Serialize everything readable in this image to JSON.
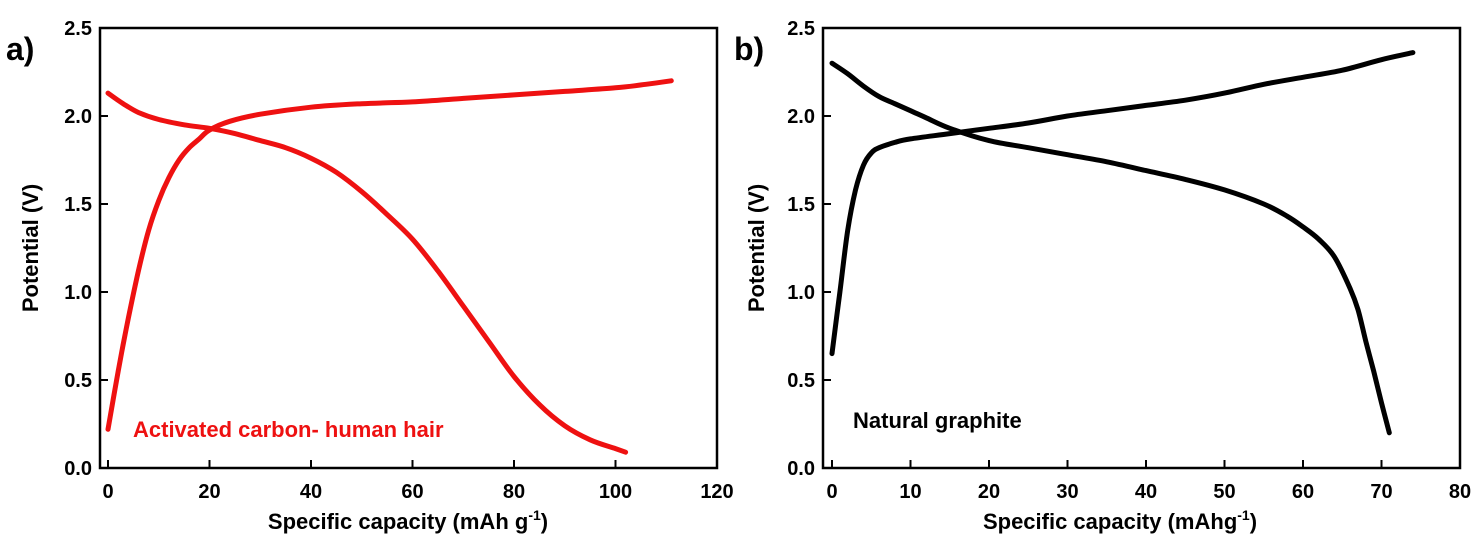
{
  "chart_data": [
    {
      "type": "line",
      "panel_label": "a)",
      "xlabel": "Specific capacity (mAh g",
      "xlabel_sup": "-1",
      "xlabel_end": ")",
      "ylabel": "Potential (V)",
      "xlim": [
        0,
        120
      ],
      "ylim": [
        0,
        2.5
      ],
      "xticks": [
        0,
        20,
        40,
        60,
        80,
        100,
        120
      ],
      "yticks": [
        0.0,
        0.5,
        1.0,
        1.5,
        2.0,
        2.5
      ],
      "xtick_labels": [
        "0",
        "20",
        "40",
        "60",
        "80",
        "100",
        "120"
      ],
      "ytick_labels": [
        "0.0",
        "0.5",
        "1.0",
        "1.5",
        "2.0",
        "2.5"
      ],
      "annotation": "Activated carbon- human hair",
      "color": "#ee1111",
      "series": [
        {
          "values": [
            [
              0,
              0.22
            ],
            [
              2,
              0.55
            ],
            [
              4,
              0.85
            ],
            [
              6,
              1.12
            ],
            [
              8,
              1.35
            ],
            [
              10,
              1.52
            ],
            [
              12,
              1.65
            ],
            [
              14,
              1.75
            ],
            [
              16,
              1.82
            ],
            [
              18,
              1.87
            ],
            [
              20,
              1.92
            ],
            [
              24,
              1.97
            ],
            [
              30,
              2.01
            ],
            [
              40,
              2.05
            ],
            [
              50,
              2.07
            ],
            [
              60,
              2.08
            ],
            [
              70,
              2.1
            ],
            [
              80,
              2.12
            ],
            [
              90,
              2.14
            ],
            [
              100,
              2.16
            ],
            [
              106,
              2.18
            ],
            [
              111,
              2.2
            ]
          ]
        },
        {
          "values": [
            [
              0,
              2.13
            ],
            [
              3,
              2.07
            ],
            [
              6,
              2.02
            ],
            [
              10,
              1.98
            ],
            [
              15,
              1.95
            ],
            [
              20,
              1.93
            ],
            [
              25,
              1.9
            ],
            [
              30,
              1.86
            ],
            [
              35,
              1.82
            ],
            [
              40,
              1.76
            ],
            [
              45,
              1.68
            ],
            [
              50,
              1.57
            ],
            [
              55,
              1.44
            ],
            [
              60,
              1.3
            ],
            [
              65,
              1.12
            ],
            [
              70,
              0.92
            ],
            [
              75,
              0.72
            ],
            [
              80,
              0.52
            ],
            [
              85,
              0.36
            ],
            [
              90,
              0.24
            ],
            [
              95,
              0.16
            ],
            [
              100,
              0.11
            ],
            [
              102,
              0.09
            ]
          ]
        }
      ]
    },
    {
      "type": "line",
      "panel_label": "b)",
      "xlabel": "Specific capacity (mAhg",
      "xlabel_sup": "-1",
      "xlabel_end": ")",
      "ylabel": "Potential (V)",
      "xlim": [
        0,
        80
      ],
      "ylim": [
        0,
        2.5
      ],
      "xticks": [
        0,
        10,
        20,
        30,
        40,
        50,
        60,
        70,
        80
      ],
      "yticks": [
        0.0,
        0.5,
        1.0,
        1.5,
        2.0,
        2.5
      ],
      "xtick_labels": [
        "0",
        "10",
        "20",
        "30",
        "40",
        "50",
        "60",
        "70",
        "80"
      ],
      "ytick_labels": [
        "0.0",
        "0.5",
        "1.0",
        "1.5",
        "2.0",
        "2.5"
      ],
      "annotation": "Natural graphite",
      "color": "#000000",
      "series": [
        {
          "values": [
            [
              0,
              0.65
            ],
            [
              1,
              1.0
            ],
            [
              2,
              1.35
            ],
            [
              3,
              1.58
            ],
            [
              4,
              1.72
            ],
            [
              5,
              1.79
            ],
            [
              6,
              1.82
            ],
            [
              8,
              1.85
            ],
            [
              10,
              1.87
            ],
            [
              15,
              1.9
            ],
            [
              20,
              1.93
            ],
            [
              25,
              1.96
            ],
            [
              30,
              2.0
            ],
            [
              35,
              2.03
            ],
            [
              40,
              2.06
            ],
            [
              45,
              2.09
            ],
            [
              50,
              2.13
            ],
            [
              55,
              2.18
            ],
            [
              60,
              2.22
            ],
            [
              65,
              2.26
            ],
            [
              70,
              2.32
            ],
            [
              74,
              2.36
            ]
          ]
        },
        {
          "values": [
            [
              0,
              2.3
            ],
            [
              2,
              2.24
            ],
            [
              4,
              2.17
            ],
            [
              6,
              2.11
            ],
            [
              8,
              2.07
            ],
            [
              10,
              2.03
            ],
            [
              12,
              1.99
            ],
            [
              15,
              1.93
            ],
            [
              20,
              1.86
            ],
            [
              25,
              1.82
            ],
            [
              30,
              1.78
            ],
            [
              35,
              1.74
            ],
            [
              40,
              1.69
            ],
            [
              45,
              1.64
            ],
            [
              50,
              1.58
            ],
            [
              55,
              1.5
            ],
            [
              58,
              1.43
            ],
            [
              60,
              1.37
            ],
            [
              62,
              1.3
            ],
            [
              64,
              1.2
            ],
            [
              66,
              1.02
            ],
            [
              67,
              0.9
            ],
            [
              68,
              0.72
            ],
            [
              69,
              0.55
            ],
            [
              70,
              0.37
            ],
            [
              71,
              0.2
            ]
          ]
        }
      ]
    }
  ]
}
